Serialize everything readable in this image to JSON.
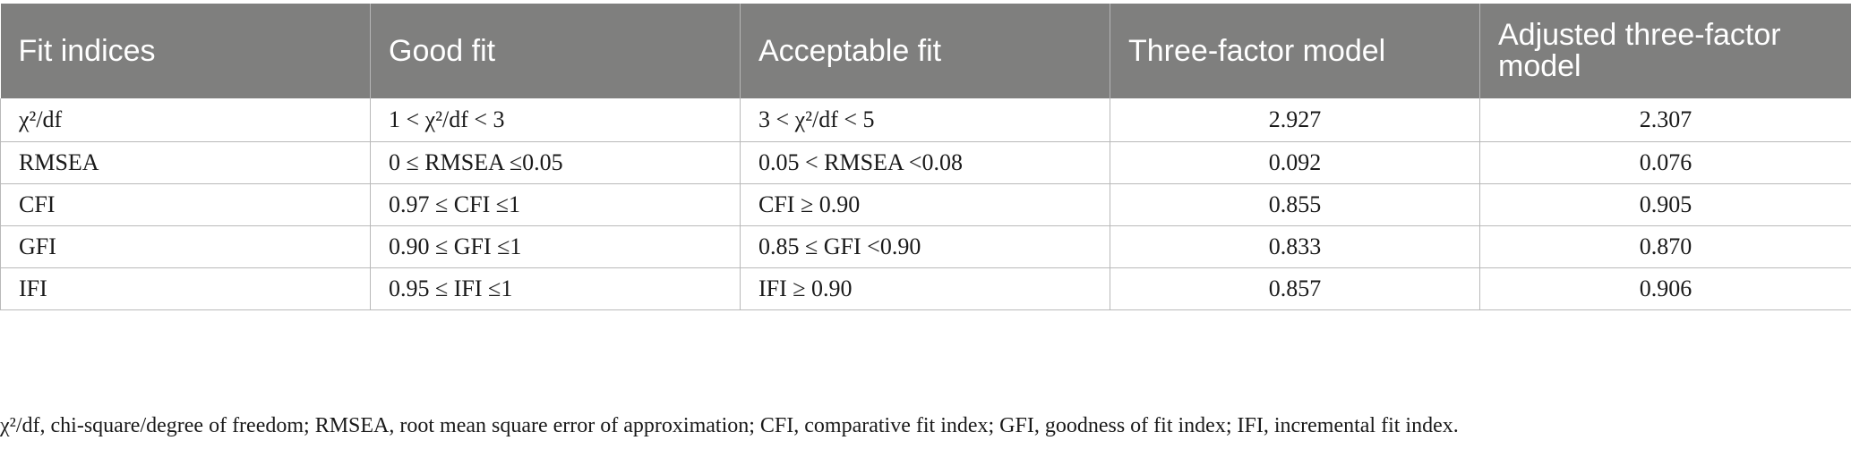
{
  "table": {
    "headers": [
      "Fit indices",
      "Good fit",
      "Acceptable fit",
      "Three-factor model",
      "Adjusted three-factor model"
    ],
    "rows": [
      [
        "χ²/df",
        "1 < χ²/df < 3",
        "3 < χ²/df < 5",
        "2.927",
        "2.307"
      ],
      [
        "RMSEA",
        "0 ≤ RMSEA ≤0.05",
        "0.05 < RMSEA <0.08",
        "0.092",
        "0.076"
      ],
      [
        "CFI",
        "0.97 ≤ CFI ≤1",
        "CFI ≥ 0.90",
        "0.855",
        "0.905"
      ],
      [
        "GFI",
        "0.90 ≤ GFI ≤1",
        "0.85 ≤ GFI <0.90",
        "0.833",
        "0.870"
      ],
      [
        "IFI",
        "0.95 ≤ IFI ≤1",
        "IFI ≥ 0.90",
        "0.857",
        "0.906"
      ]
    ]
  },
  "footnote": "χ²/df, chi-square/degree of freedom; RMSEA, root mean square error of approximation; CFI, comparative fit index; GFI, goodness of fit index; IFI, incremental fit index."
}
